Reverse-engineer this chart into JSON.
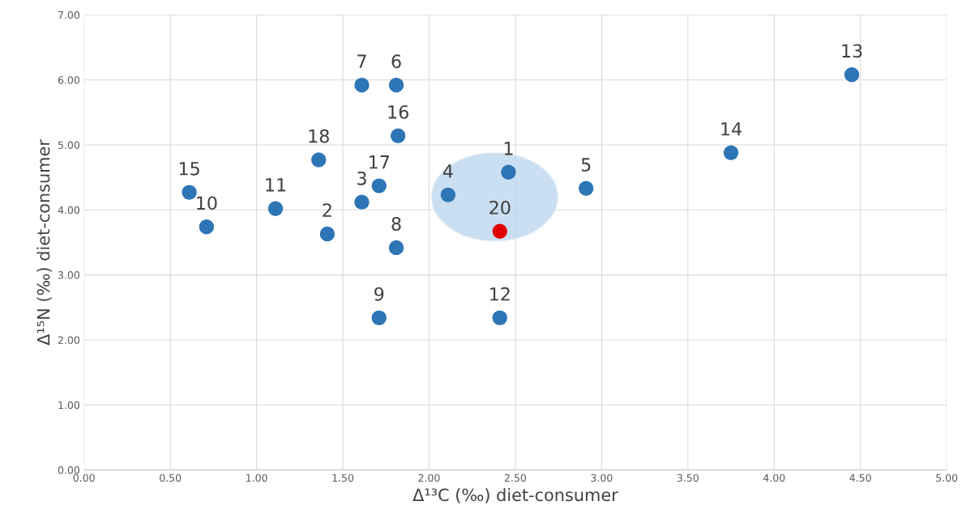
{
  "chart_data": {
    "type": "scatter",
    "xlabel": "Δ¹³C (‰) diet-consumer",
    "ylabel": "Δ¹⁵N (‰) diet-consumer",
    "x": [
      2.46,
      1.41,
      1.61,
      2.11,
      2.91,
      1.81,
      1.61,
      1.81,
      1.71,
      0.71,
      1.11,
      2.41,
      4.45,
      3.75,
      0.61,
      1.82,
      1.71,
      1.36,
      2.41
    ],
    "values": [
      4.58,
      3.63,
      4.12,
      4.23,
      4.33,
      5.92,
      5.92,
      3.42,
      2.34,
      3.74,
      4.02,
      2.34,
      6.08,
      4.88,
      4.27,
      5.14,
      4.37,
      4.77,
      3.67
    ],
    "colors": [
      "#2e75b6",
      "#2e75b6",
      "#2e75b6",
      "#2e75b6",
      "#2e75b6",
      "#2e75b6",
      "#2e75b6",
      "#2e75b6",
      "#2e75b6",
      "#2e75b6",
      "#2e75b6",
      "#2e75b6",
      "#2e75b6",
      "#2e75b6",
      "#2e75b6",
      "#2e75b6",
      "#2e75b6",
      "#2e75b6",
      "#e00000"
    ],
    "annotations": [
      {
        "text": "1",
        "x": 2.46,
        "y": 4.58
      },
      {
        "text": "2",
        "x": 1.41,
        "y": 3.63
      },
      {
        "text": "3",
        "x": 1.61,
        "y": 4.12
      },
      {
        "text": "4",
        "x": 2.11,
        "y": 4.23
      },
      {
        "text": "5",
        "x": 2.91,
        "y": 4.33
      },
      {
        "text": "6",
        "x": 1.81,
        "y": 5.92
      },
      {
        "text": "7",
        "x": 1.61,
        "y": 5.92
      },
      {
        "text": "8",
        "x": 1.81,
        "y": 3.42
      },
      {
        "text": "9",
        "x": 1.71,
        "y": 2.34
      },
      {
        "text": "10",
        "x": 0.71,
        "y": 3.74
      },
      {
        "text": "11",
        "x": 1.11,
        "y": 4.02
      },
      {
        "text": "12",
        "x": 2.41,
        "y": 2.34
      },
      {
        "text": "13",
        "x": 4.45,
        "y": 6.08
      },
      {
        "text": "14",
        "x": 3.75,
        "y": 4.88
      },
      {
        "text": "15",
        "x": 0.61,
        "y": 4.27
      },
      {
        "text": "16",
        "x": 1.82,
        "y": 5.14
      },
      {
        "text": "17",
        "x": 1.71,
        "y": 4.37
      },
      {
        "text": "18",
        "x": 1.36,
        "y": 4.77
      },
      {
        "text": "20",
        "x": 2.41,
        "y": 3.67
      }
    ],
    "marker": "circle",
    "grid": true,
    "xlim": [
      0,
      5
    ],
    "ylim": [
      0,
      7
    ],
    "xticks": [
      {
        "value": 0,
        "label": "0.00"
      },
      {
        "value": 0.5,
        "label": "0.50"
      },
      {
        "value": 1,
        "label": "1.00"
      },
      {
        "value": 1.5,
        "label": "1.50"
      },
      {
        "value": 2,
        "label": "2.00"
      },
      {
        "value": 2.5,
        "label": "2.50"
      },
      {
        "value": 3,
        "label": "3.00"
      },
      {
        "value": 3.5,
        "label": "3.50"
      },
      {
        "value": 4,
        "label": "4.00"
      },
      {
        "value": 4.5,
        "label": "4.50"
      },
      {
        "value": 5,
        "label": "5.00"
      }
    ],
    "yticks": [
      {
        "value": 0,
        "label": "0.00"
      },
      {
        "value": 1,
        "label": "1.00"
      },
      {
        "value": 2,
        "label": "2.00"
      },
      {
        "value": 3,
        "label": "3.00"
      },
      {
        "value": 4,
        "label": "4.00"
      },
      {
        "value": 5,
        "label": "5.00"
      },
      {
        "value": 6,
        "label": "6.00"
      },
      {
        "value": 7,
        "label": "7.00"
      }
    ]
  }
}
